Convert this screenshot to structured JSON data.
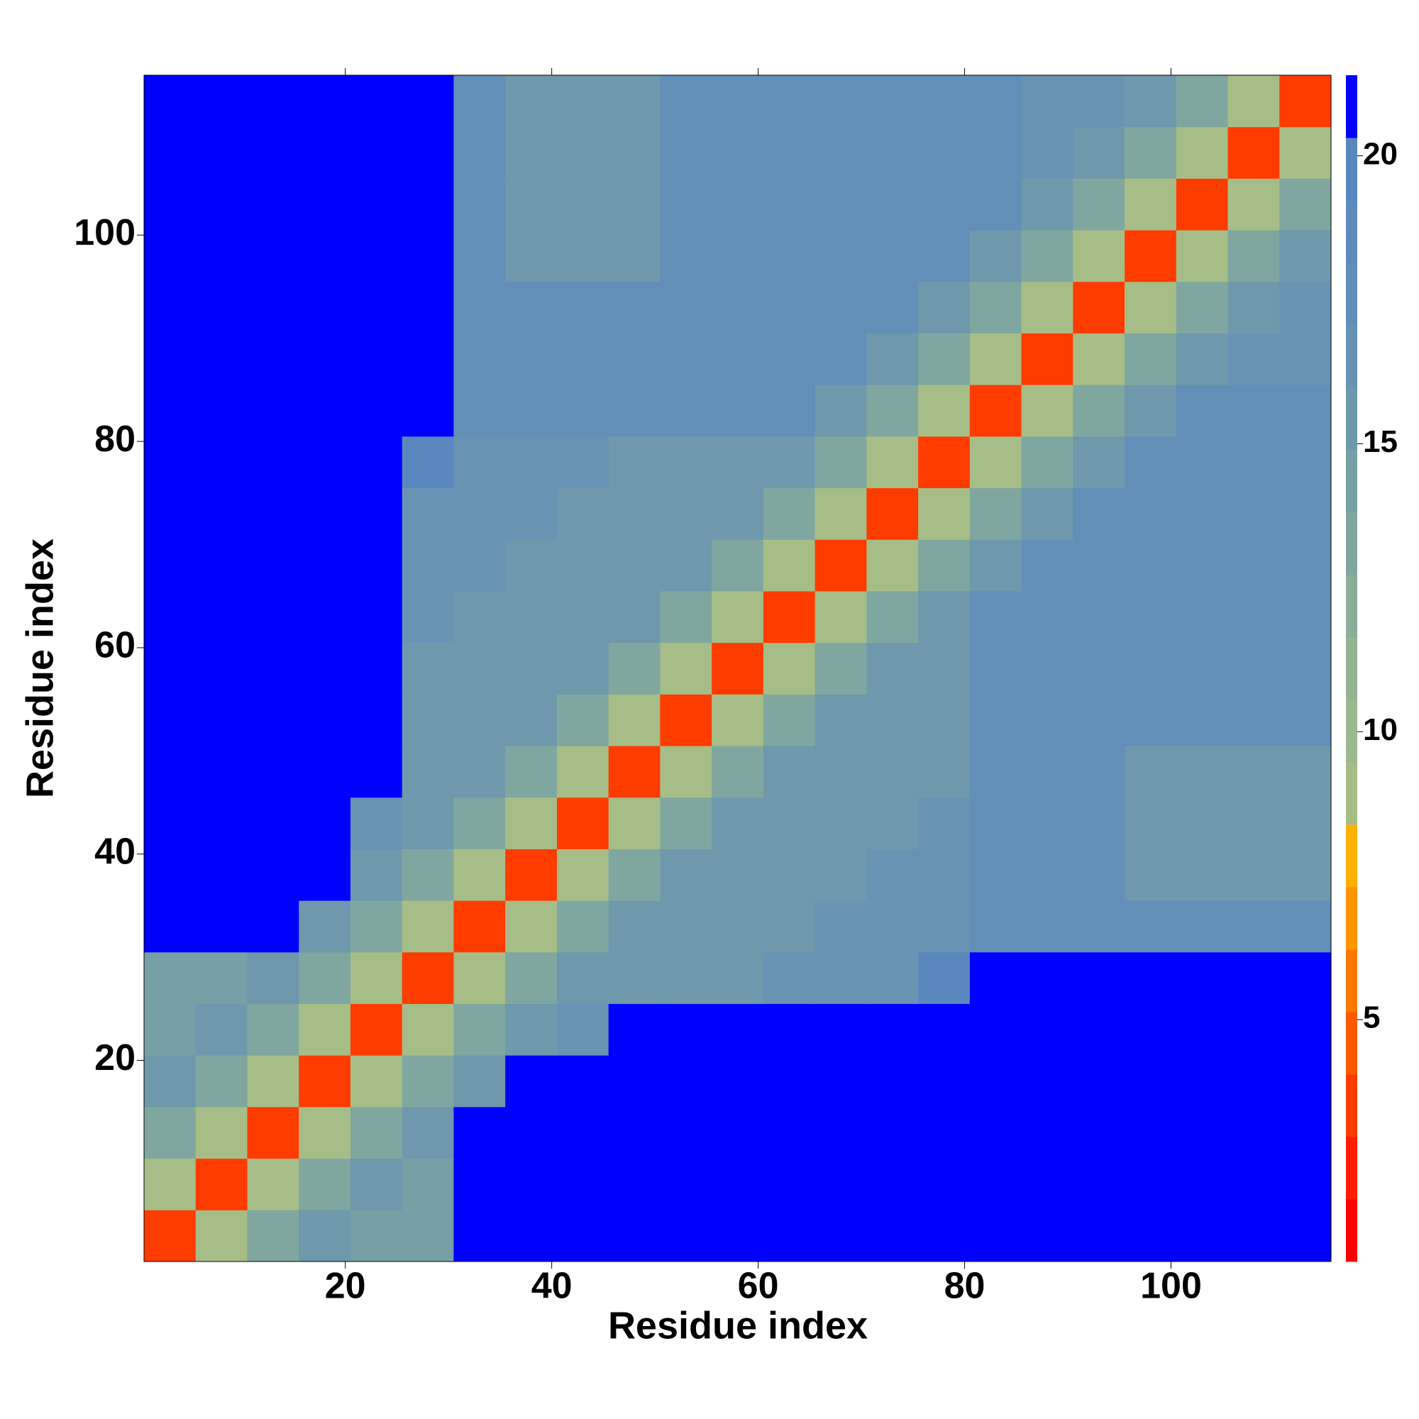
{
  "chart_data": {
    "type": "heatmap",
    "x_label": "Residue index",
    "y_label": "Residue index",
    "x_edges": [
      0.5,
      5.5,
      10.5,
      15.5,
      20.5,
      25.5,
      30.5,
      35.5,
      40.5,
      45.5,
      50.5,
      55.5,
      60.5,
      65.5,
      70.5,
      75.5,
      80.5,
      85.5,
      90.5,
      95.5,
      100.5,
      105.5,
      110.5,
      115.5
    ],
    "y_edges": [
      0.5,
      5.5,
      10.5,
      15.5,
      20.5,
      25.5,
      30.5,
      35.5,
      40.5,
      45.5,
      50.5,
      55.5,
      60.5,
      65.5,
      70.5,
      75.5,
      80.5,
      85.5,
      90.5,
      95.5,
      100.5,
      105.5,
      110.5,
      115.5
    ],
    "xlim": [
      0.5,
      115.5
    ],
    "ylim": [
      0.5,
      115.5
    ],
    "xticks": [
      20,
      40,
      60,
      80,
      100
    ],
    "yticks": [
      20,
      40,
      60,
      80,
      100
    ],
    "zlim": [
      0.8,
      21.4
    ],
    "zticks": [
      5,
      10,
      15,
      20
    ],
    "colors": [
      "#ff0000",
      "#ff1e00",
      "#ff3c00",
      "#ff5a00",
      "#ff7800",
      "#ff9600",
      "#ffb000",
      "#a6bd88",
      "#9cb88e",
      "#93b393",
      "#89ad99",
      "#80a79f",
      "#779fa6",
      "#6f98ad",
      "#6893b3",
      "#628fb8",
      "#5e8bbb",
      "#5a88be",
      "#0000ff"
    ],
    "z": [
      [
        4,
        9,
        13,
        15,
        14,
        14,
        21,
        21,
        21,
        21,
        21,
        21,
        21,
        21,
        21,
        21,
        21,
        21,
        21,
        21,
        21,
        21,
        21
      ],
      [
        9,
        4,
        9,
        13,
        15,
        14,
        21,
        21,
        21,
        21,
        21,
        21,
        21,
        21,
        21,
        21,
        21,
        21,
        21,
        21,
        21,
        21,
        21
      ],
      [
        13,
        9,
        4,
        9,
        13,
        15,
        21,
        21,
        21,
        21,
        21,
        21,
        21,
        21,
        21,
        21,
        21,
        21,
        21,
        21,
        21,
        21,
        21
      ],
      [
        15,
        13,
        9,
        4,
        9,
        13,
        15,
        21,
        21,
        21,
        21,
        21,
        21,
        21,
        21,
        21,
        21,
        21,
        21,
        21,
        21,
        21,
        21
      ],
      [
        14,
        15,
        13,
        9,
        4,
        9,
        13,
        15,
        17,
        21,
        21,
        21,
        21,
        21,
        21,
        21,
        21,
        21,
        21,
        21,
        21,
        21,
        21
      ],
      [
        14,
        14,
        15,
        13,
        9,
        4,
        9,
        13,
        15,
        15,
        15,
        15,
        17,
        17,
        17,
        20,
        21,
        21,
        21,
        21,
        21,
        21,
        21
      ],
      [
        21,
        21,
        21,
        15,
        13,
        9,
        4,
        9,
        13,
        15,
        15,
        15,
        15,
        17,
        17,
        17,
        18,
        18,
        18,
        18,
        18,
        18,
        18
      ],
      [
        21,
        21,
        21,
        21,
        15,
        13,
        9,
        4,
        9,
        13,
        15,
        15,
        15,
        15,
        17,
        17,
        18,
        18,
        18,
        15,
        15,
        15,
        15
      ],
      [
        21,
        21,
        21,
        21,
        17,
        15,
        13,
        9,
        4,
        9,
        13,
        15,
        15,
        15,
        15,
        17,
        18,
        18,
        18,
        15,
        15,
        15,
        15
      ],
      [
        21,
        21,
        21,
        21,
        21,
        15,
        15,
        13,
        9,
        4,
        9,
        13,
        15,
        15,
        15,
        15,
        18,
        18,
        18,
        15,
        15,
        15,
        15
      ],
      [
        21,
        21,
        21,
        21,
        21,
        15,
        15,
        15,
        13,
        9,
        4,
        9,
        13,
        15,
        15,
        15,
        18,
        18,
        18,
        18,
        18,
        18,
        18
      ],
      [
        21,
        21,
        21,
        21,
        21,
        15,
        15,
        15,
        15,
        13,
        9,
        4,
        9,
        13,
        15,
        15,
        18,
        18,
        18,
        18,
        18,
        18,
        18
      ],
      [
        21,
        21,
        21,
        21,
        21,
        17,
        15,
        15,
        15,
        15,
        13,
        9,
        4,
        9,
        13,
        15,
        18,
        18,
        18,
        18,
        18,
        18,
        18
      ],
      [
        21,
        21,
        21,
        21,
        21,
        17,
        17,
        15,
        15,
        15,
        15,
        13,
        9,
        4,
        9,
        13,
        15,
        18,
        18,
        18,
        18,
        18,
        18
      ],
      [
        21,
        21,
        21,
        21,
        21,
        17,
        17,
        17,
        15,
        15,
        15,
        15,
        13,
        9,
        4,
        9,
        13,
        15,
        18,
        18,
        18,
        18,
        18
      ],
      [
        21,
        21,
        21,
        21,
        21,
        20,
        17,
        17,
        17,
        15,
        15,
        15,
        15,
        13,
        9,
        4,
        9,
        13,
        15,
        18,
        18,
        18,
        18
      ],
      [
        21,
        21,
        21,
        21,
        21,
        21,
        18,
        18,
        18,
        18,
        18,
        18,
        18,
        15,
        13,
        9,
        4,
        9,
        13,
        15,
        18,
        18,
        18
      ],
      [
        21,
        21,
        21,
        21,
        21,
        21,
        18,
        18,
        18,
        18,
        18,
        18,
        18,
        18,
        15,
        13,
        9,
        4,
        9,
        13,
        15,
        16,
        16
      ],
      [
        21,
        21,
        21,
        21,
        21,
        21,
        18,
        18,
        18,
        18,
        18,
        18,
        18,
        18,
        18,
        15,
        13,
        9,
        4,
        9,
        13,
        15,
        16
      ],
      [
        21,
        21,
        21,
        21,
        21,
        21,
        18,
        15,
        15,
        15,
        18,
        18,
        18,
        18,
        18,
        18,
        15,
        13,
        9,
        4,
        9,
        13,
        15
      ],
      [
        21,
        21,
        21,
        21,
        21,
        21,
        18,
        15,
        15,
        15,
        18,
        18,
        18,
        18,
        18,
        18,
        18,
        15,
        13,
        9,
        4,
        9,
        13
      ],
      [
        21,
        21,
        21,
        21,
        21,
        21,
        18,
        15,
        15,
        15,
        18,
        18,
        18,
        18,
        18,
        18,
        18,
        16,
        15,
        13,
        9,
        4,
        9
      ],
      [
        21,
        21,
        21,
        21,
        21,
        21,
        18,
        15,
        15,
        15,
        18,
        18,
        18,
        18,
        18,
        18,
        18,
        16,
        16,
        15,
        13,
        9,
        4
      ]
    ]
  }
}
